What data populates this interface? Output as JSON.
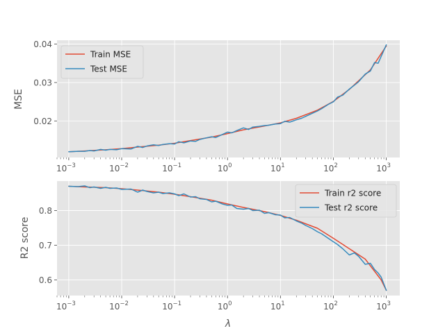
{
  "figure": {
    "background": "#ffffff",
    "axes_background": "#e5e5e5",
    "grid_color": "#ffffff",
    "tick_color": "#555555",
    "label_color": "#555555"
  },
  "chart_data": [
    {
      "type": "line",
      "title": "",
      "xlabel": "",
      "ylabel": "MSE",
      "xscale": "log",
      "xlim": [
        0.0006,
        1800
      ],
      "ylim": [
        0.0105,
        0.041
      ],
      "grid": true,
      "legend_position": "top-left",
      "x_ticks": [
        0.001,
        0.01,
        0.1,
        1,
        10,
        100,
        1000
      ],
      "x_tick_labels": [
        {
          "base": "10",
          "exp": "−3"
        },
        {
          "base": "10",
          "exp": "−2"
        },
        {
          "base": "10",
          "exp": "−1"
        },
        {
          "base": "10",
          "exp": "0"
        },
        {
          "base": "10",
          "exp": "1"
        },
        {
          "base": "10",
          "exp": "2"
        },
        {
          "base": "10",
          "exp": "3"
        }
      ],
      "y_ticks": [
        0.02,
        0.03,
        0.04
      ],
      "y_tick_labels": [
        "0.02",
        "0.03",
        "0.04"
      ],
      "series": [
        {
          "name": "Train MSE",
          "color": "#E24A33",
          "x": [
            0.001,
            0.002,
            0.005,
            0.01,
            0.02,
            0.05,
            0.1,
            0.2,
            0.5,
            1,
            2,
            5,
            10,
            20,
            50,
            100,
            200,
            500,
            1000
          ],
          "y": [
            0.012,
            0.0122,
            0.0125,
            0.0128,
            0.0132,
            0.0137,
            0.0142,
            0.0149,
            0.0158,
            0.0167,
            0.0177,
            0.0187,
            0.0195,
            0.0207,
            0.0228,
            0.0251,
            0.0282,
            0.0333,
            0.0395
          ]
        },
        {
          "name": "Test MSE",
          "color": "#348ABD",
          "x": [
            0.001,
            0.0015,
            0.002,
            0.0025,
            0.003,
            0.004,
            0.005,
            0.006,
            0.008,
            0.01,
            0.015,
            0.02,
            0.025,
            0.03,
            0.04,
            0.05,
            0.06,
            0.08,
            0.1,
            0.12,
            0.15,
            0.2,
            0.25,
            0.3,
            0.4,
            0.5,
            0.6,
            0.8,
            1,
            1.2,
            1.5,
            2,
            2.5,
            3,
            4,
            5,
            6,
            8,
            10,
            12,
            15,
            20,
            25,
            30,
            40,
            50,
            60,
            80,
            100,
            120,
            150,
            200,
            250,
            300,
            400,
            500,
            600,
            700,
            800,
            1000
          ],
          "y": [
            0.012,
            0.0121,
            0.0121,
            0.0123,
            0.0122,
            0.0126,
            0.0124,
            0.0126,
            0.0125,
            0.0128,
            0.0127,
            0.0134,
            0.0131,
            0.0135,
            0.0138,
            0.0136,
            0.0139,
            0.0141,
            0.014,
            0.0146,
            0.0143,
            0.0148,
            0.0147,
            0.0152,
            0.0156,
            0.0159,
            0.0157,
            0.0165,
            0.0171,
            0.0169,
            0.0175,
            0.0182,
            0.0178,
            0.0184,
            0.0186,
            0.0188,
            0.0189,
            0.0192,
            0.0193,
            0.0199,
            0.0197,
            0.0203,
            0.0207,
            0.0212,
            0.022,
            0.0226,
            0.0232,
            0.0243,
            0.025,
            0.0262,
            0.0267,
            0.0283,
            0.0293,
            0.0302,
            0.0322,
            0.033,
            0.0352,
            0.035,
            0.0368,
            0.0398
          ]
        }
      ]
    },
    {
      "type": "line",
      "title": "",
      "xlabel": "λ",
      "ylabel": "R2 score",
      "xscale": "log",
      "xlim": [
        0.0006,
        1800
      ],
      "ylim": [
        0.555,
        0.885
      ],
      "grid": true,
      "legend_position": "top-right",
      "x_ticks": [
        0.001,
        0.01,
        0.1,
        1,
        10,
        100,
        1000
      ],
      "x_tick_labels": [
        {
          "base": "10",
          "exp": "−3"
        },
        {
          "base": "10",
          "exp": "−2"
        },
        {
          "base": "10",
          "exp": "−1"
        },
        {
          "base": "10",
          "exp": "0"
        },
        {
          "base": "10",
          "exp": "1"
        },
        {
          "base": "10",
          "exp": "2"
        },
        {
          "base": "10",
          "exp": "3"
        }
      ],
      "y_ticks": [
        0.6,
        0.7,
        0.8
      ],
      "y_tick_labels": [
        "0.6",
        "0.7",
        "0.8"
      ],
      "series": [
        {
          "name": "Train r2 score",
          "color": "#E24A33",
          "x": [
            0.001,
            0.002,
            0.005,
            0.01,
            0.02,
            0.05,
            0.1,
            0.2,
            0.5,
            1,
            2,
            5,
            10,
            20,
            50,
            100,
            200,
            400,
            600,
            800,
            1000
          ],
          "y": [
            0.87,
            0.868,
            0.866,
            0.863,
            0.859,
            0.853,
            0.847,
            0.84,
            0.83,
            0.819,
            0.809,
            0.797,
            0.786,
            0.772,
            0.749,
            0.72,
            0.69,
            0.66,
            0.625,
            0.6,
            0.57
          ]
        },
        {
          "name": "Test r2 score",
          "color": "#348ABD",
          "x": [
            0.001,
            0.0015,
            0.002,
            0.0025,
            0.003,
            0.004,
            0.005,
            0.006,
            0.008,
            0.01,
            0.015,
            0.02,
            0.025,
            0.03,
            0.04,
            0.05,
            0.06,
            0.08,
            0.1,
            0.12,
            0.15,
            0.2,
            0.25,
            0.3,
            0.4,
            0.5,
            0.6,
            0.8,
            1,
            1.2,
            1.5,
            2,
            2.5,
            3,
            4,
            5,
            6,
            8,
            10,
            12,
            15,
            20,
            25,
            30,
            40,
            50,
            60,
            80,
            100,
            120,
            150,
            200,
            250,
            300,
            400,
            500,
            600,
            700,
            800,
            1000
          ],
          "y": [
            0.87,
            0.869,
            0.871,
            0.866,
            0.868,
            0.864,
            0.867,
            0.864,
            0.865,
            0.861,
            0.862,
            0.853,
            0.859,
            0.855,
            0.851,
            0.853,
            0.849,
            0.851,
            0.848,
            0.843,
            0.848,
            0.839,
            0.84,
            0.834,
            0.832,
            0.825,
            0.827,
            0.819,
            0.815,
            0.816,
            0.806,
            0.804,
            0.806,
            0.8,
            0.801,
            0.792,
            0.794,
            0.788,
            0.787,
            0.779,
            0.78,
            0.77,
            0.764,
            0.757,
            0.748,
            0.739,
            0.733,
            0.72,
            0.71,
            0.702,
            0.69,
            0.672,
            0.678,
            0.668,
            0.645,
            0.648,
            0.63,
            0.62,
            0.608,
            0.57
          ]
        }
      ]
    }
  ]
}
